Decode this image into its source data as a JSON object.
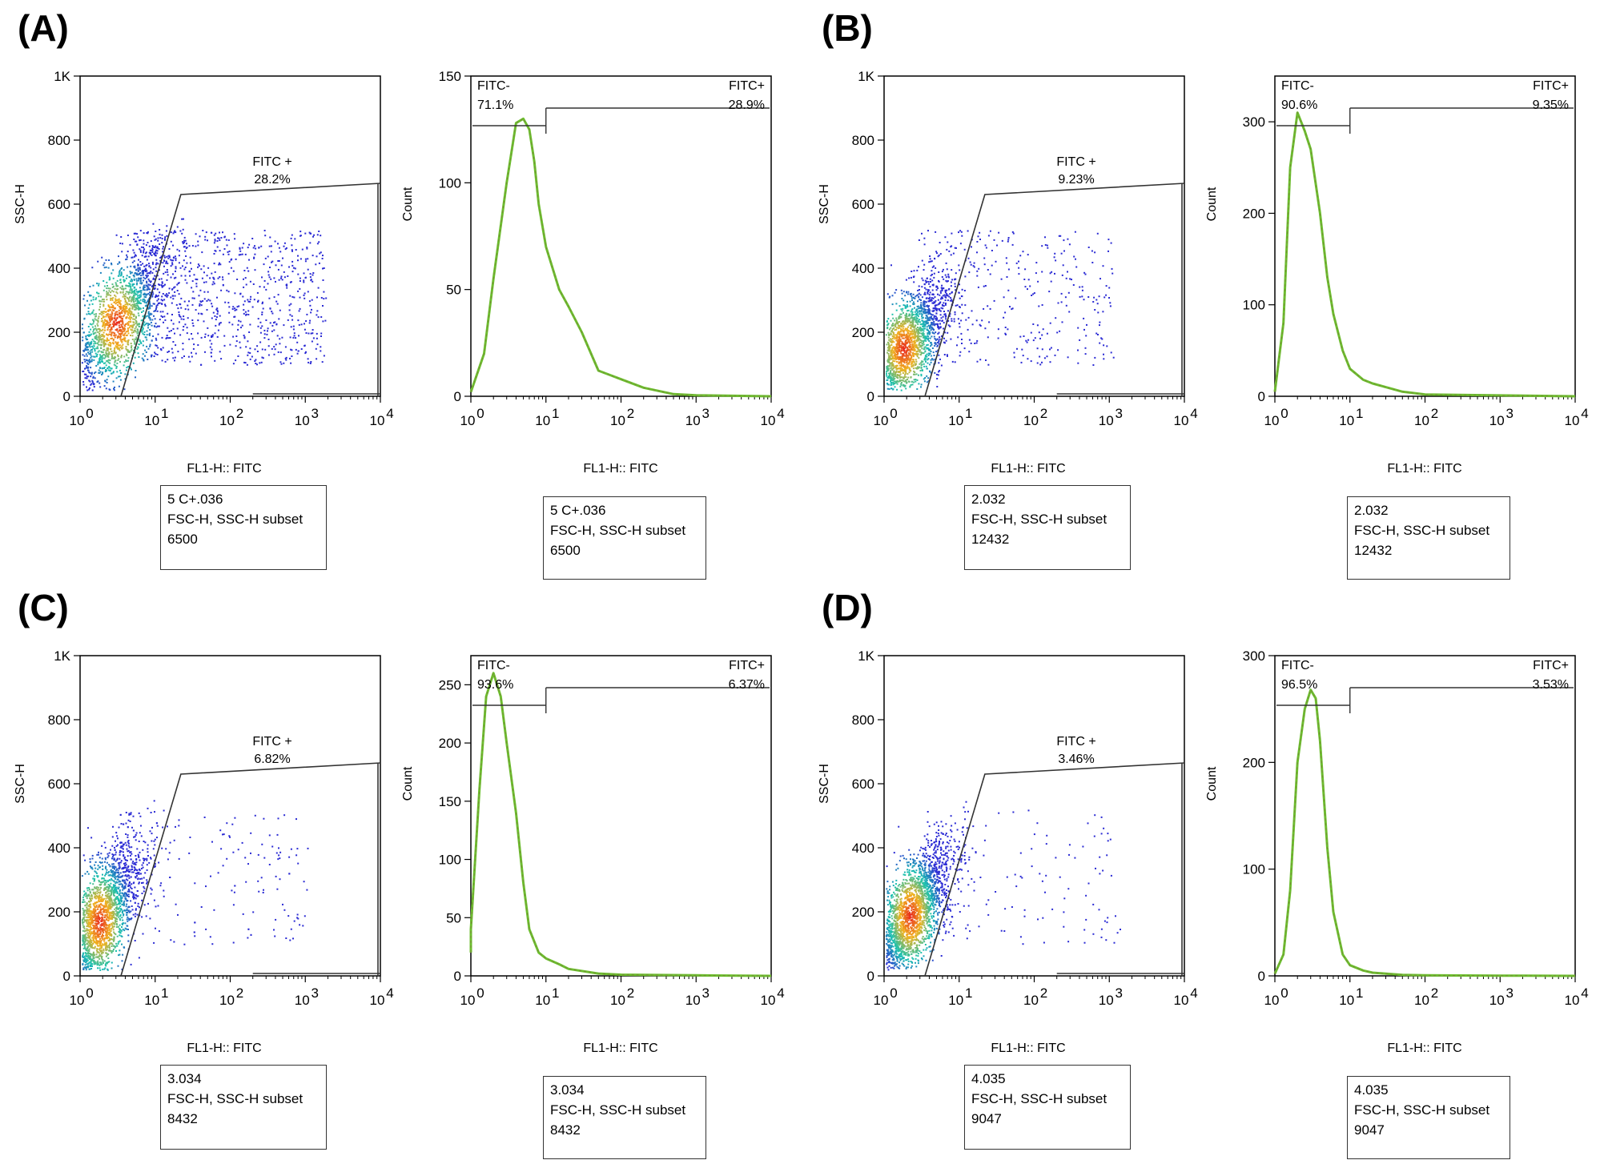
{
  "chart_data": [
    {
      "panel": "(A)",
      "dot_plot": {
        "type": "scatter",
        "xlabel": "FL1-H:: FITC",
        "ylabel": "SSC-H",
        "x_scale": "log",
        "xlim": [
          1,
          10000
        ],
        "ylim": [
          0,
          1000
        ],
        "x_ticks": [
          "10^0",
          "10^1",
          "10^2",
          "10^3",
          "10^4"
        ],
        "y_ticks": [
          "0",
          "200",
          "400",
          "600",
          "800",
          "1K"
        ],
        "gate": {
          "label": "FITC +",
          "value": "28.2%"
        },
        "info": [
          "5 C+.036",
          "FSC-H, SSC-H subset",
          "6500"
        ],
        "cluster": {
          "x_center": 3,
          "y_center": 230,
          "spread_x": 0.35,
          "spread_y": 90,
          "tail": 0.3
        }
      },
      "histogram": {
        "type": "area",
        "xlabel": "FL1-H:: FITC",
        "ylabel": "Count",
        "x_scale": "log",
        "xlim": [
          1,
          10000
        ],
        "ylim": [
          0,
          150
        ],
        "y_ticks": [
          "0",
          "50",
          "100",
          "150"
        ],
        "y_tick_values": [
          0,
          50,
          100,
          150
        ],
        "gate_neg": {
          "label": "FITC-",
          "value": "71.1%"
        },
        "gate_pos": {
          "label": "FITC+",
          "value": "28.9%"
        },
        "x": [
          1,
          1.5,
          2,
          3,
          4,
          5,
          6,
          7,
          8,
          10,
          15,
          20,
          30,
          50,
          100,
          200,
          500,
          1000,
          10000
        ],
        "y": [
          2,
          20,
          55,
          100,
          128,
          130,
          125,
          110,
          90,
          70,
          50,
          42,
          30,
          12,
          8,
          4,
          1,
          0.5,
          0
        ],
        "info": [
          "5 C+.036",
          "FSC-H, SSC-H subset",
          "6500"
        ]
      }
    },
    {
      "panel": "(B)",
      "dot_plot": {
        "type": "scatter",
        "xlabel": "FL1-H:: FITC",
        "ylabel": "SSC-H",
        "x_scale": "log",
        "xlim": [
          1,
          10000
        ],
        "ylim": [
          0,
          1000
        ],
        "x_ticks": [
          "10^0",
          "10^1",
          "10^2",
          "10^3",
          "10^4"
        ],
        "y_ticks": [
          "0",
          "200",
          "400",
          "600",
          "800",
          "1K"
        ],
        "gate": {
          "label": "FITC +",
          "value": "9.23%"
        },
        "info": [
          "2.032",
          "FSC-H, SSC-H subset",
          "12432"
        ],
        "cluster": {
          "x_center": 1.8,
          "y_center": 150,
          "spread_x": 0.3,
          "spread_y": 80,
          "tail": 0.12
        }
      },
      "histogram": {
        "type": "area",
        "xlabel": "FL1-H:: FITC",
        "ylabel": "Count",
        "x_scale": "log",
        "xlim": [
          1,
          10000
        ],
        "ylim": [
          0,
          350
        ],
        "y_ticks": [
          "0",
          "100",
          "200",
          "300"
        ],
        "y_tick_values": [
          0,
          100,
          200,
          300
        ],
        "gate_neg": {
          "label": "FITC-",
          "value": "90.6%"
        },
        "gate_pos": {
          "label": "FITC+",
          "value": "9.35%"
        },
        "x": [
          1,
          1.3,
          1.6,
          2,
          2.5,
          3,
          4,
          5,
          6,
          8,
          10,
          15,
          20,
          30,
          50,
          100,
          1000,
          10000
        ],
        "y": [
          5,
          80,
          250,
          310,
          290,
          270,
          200,
          130,
          90,
          50,
          30,
          18,
          14,
          10,
          5,
          2,
          1,
          0
        ],
        "info": [
          "2.032",
          "FSC-H, SSC-H subset",
          "12432"
        ]
      }
    },
    {
      "panel": "(C)",
      "dot_plot": {
        "type": "scatter",
        "xlabel": "FL1-H:: FITC",
        "ylabel": "SSC-H",
        "x_scale": "log",
        "xlim": [
          1,
          10000
        ],
        "ylim": [
          0,
          1000
        ],
        "x_ticks": [
          "10^0",
          "10^1",
          "10^2",
          "10^3",
          "10^4"
        ],
        "y_ticks": [
          "0",
          "200",
          "400",
          "600",
          "800",
          "1K"
        ],
        "gate": {
          "label": "FITC +",
          "value": "6.82%"
        },
        "info": [
          "3.034",
          "FSC-H, SSC-H subset",
          "8432"
        ],
        "cluster": {
          "x_center": 1.8,
          "y_center": 170,
          "spread_x": 0.28,
          "spread_y": 90,
          "tail": 0.06
        }
      },
      "histogram": {
        "type": "area",
        "xlabel": "FL1-H:: FITC",
        "ylabel": "Count",
        "x_scale": "log",
        "xlim": [
          1,
          10000
        ],
        "ylim": [
          0,
          275
        ],
        "y_ticks": [
          "0",
          "50",
          "100",
          "150",
          "200",
          "250"
        ],
        "y_tick_values": [
          0,
          50,
          100,
          150,
          200,
          250
        ],
        "gate_neg": {
          "label": "FITC-",
          "value": "93.6%"
        },
        "gate_pos": {
          "label": "FITC+",
          "value": "6.37%"
        },
        "x": [
          0.8,
          1,
          1.3,
          1.6,
          2,
          2.5,
          3,
          4,
          5,
          6,
          8,
          10,
          15,
          20,
          50,
          100,
          1000,
          10000
        ],
        "y": [
          20,
          40,
          160,
          240,
          260,
          240,
          200,
          140,
          80,
          40,
          20,
          15,
          10,
          6,
          2,
          1,
          0.5,
          0
        ],
        "info": [
          "3.034",
          "FSC-H, SSC-H subset",
          "8432"
        ]
      }
    },
    {
      "panel": "(D)",
      "dot_plot": {
        "type": "scatter",
        "xlabel": "FL1-H:: FITC",
        "ylabel": "SSC-H",
        "x_scale": "log",
        "xlim": [
          1,
          10000
        ],
        "ylim": [
          0,
          1000
        ],
        "x_ticks": [
          "10^0",
          "10^1",
          "10^2",
          "10^3",
          "10^4"
        ],
        "y_ticks": [
          "0",
          "200",
          "400",
          "600",
          "800",
          "1K"
        ],
        "gate": {
          "label": "FITC +",
          "value": "3.46%"
        },
        "info": [
          "4.035",
          "FSC-H, SSC-H subset",
          "9047"
        ],
        "cluster": {
          "x_center": 2.2,
          "y_center": 190,
          "spread_x": 0.28,
          "spread_y": 85,
          "tail": 0.04
        }
      },
      "histogram": {
        "type": "area",
        "xlabel": "FL1-H:: FITC",
        "ylabel": "Count",
        "x_scale": "log",
        "xlim": [
          1,
          10000
        ],
        "ylim": [
          0,
          300
        ],
        "y_ticks": [
          "0",
          "100",
          "200",
          "300"
        ],
        "y_tick_values": [
          0,
          100,
          200,
          300
        ],
        "gate_neg": {
          "label": "FITC-",
          "value": "96.5%"
        },
        "gate_pos": {
          "label": "FITC+",
          "value": "3.53%"
        },
        "x": [
          1,
          1.3,
          1.6,
          2,
          2.5,
          3,
          3.5,
          4,
          5,
          6,
          8,
          10,
          15,
          20,
          50,
          100,
          1000,
          10000
        ],
        "y": [
          2,
          20,
          80,
          200,
          250,
          268,
          260,
          220,
          120,
          60,
          20,
          10,
          5,
          3,
          1,
          0.5,
          0.2,
          0
        ],
        "info": [
          "4.035",
          "FSC-H, SSC-H subset",
          "9047"
        ]
      }
    }
  ],
  "colors": {
    "histogram_line": "#6cbf2e",
    "histogram_dash": "#7a8a3a",
    "dot_low": "#2b2bd4",
    "dot_mid": "#19c2b0",
    "dot_high": "#e8211d",
    "axis": "#000000"
  }
}
